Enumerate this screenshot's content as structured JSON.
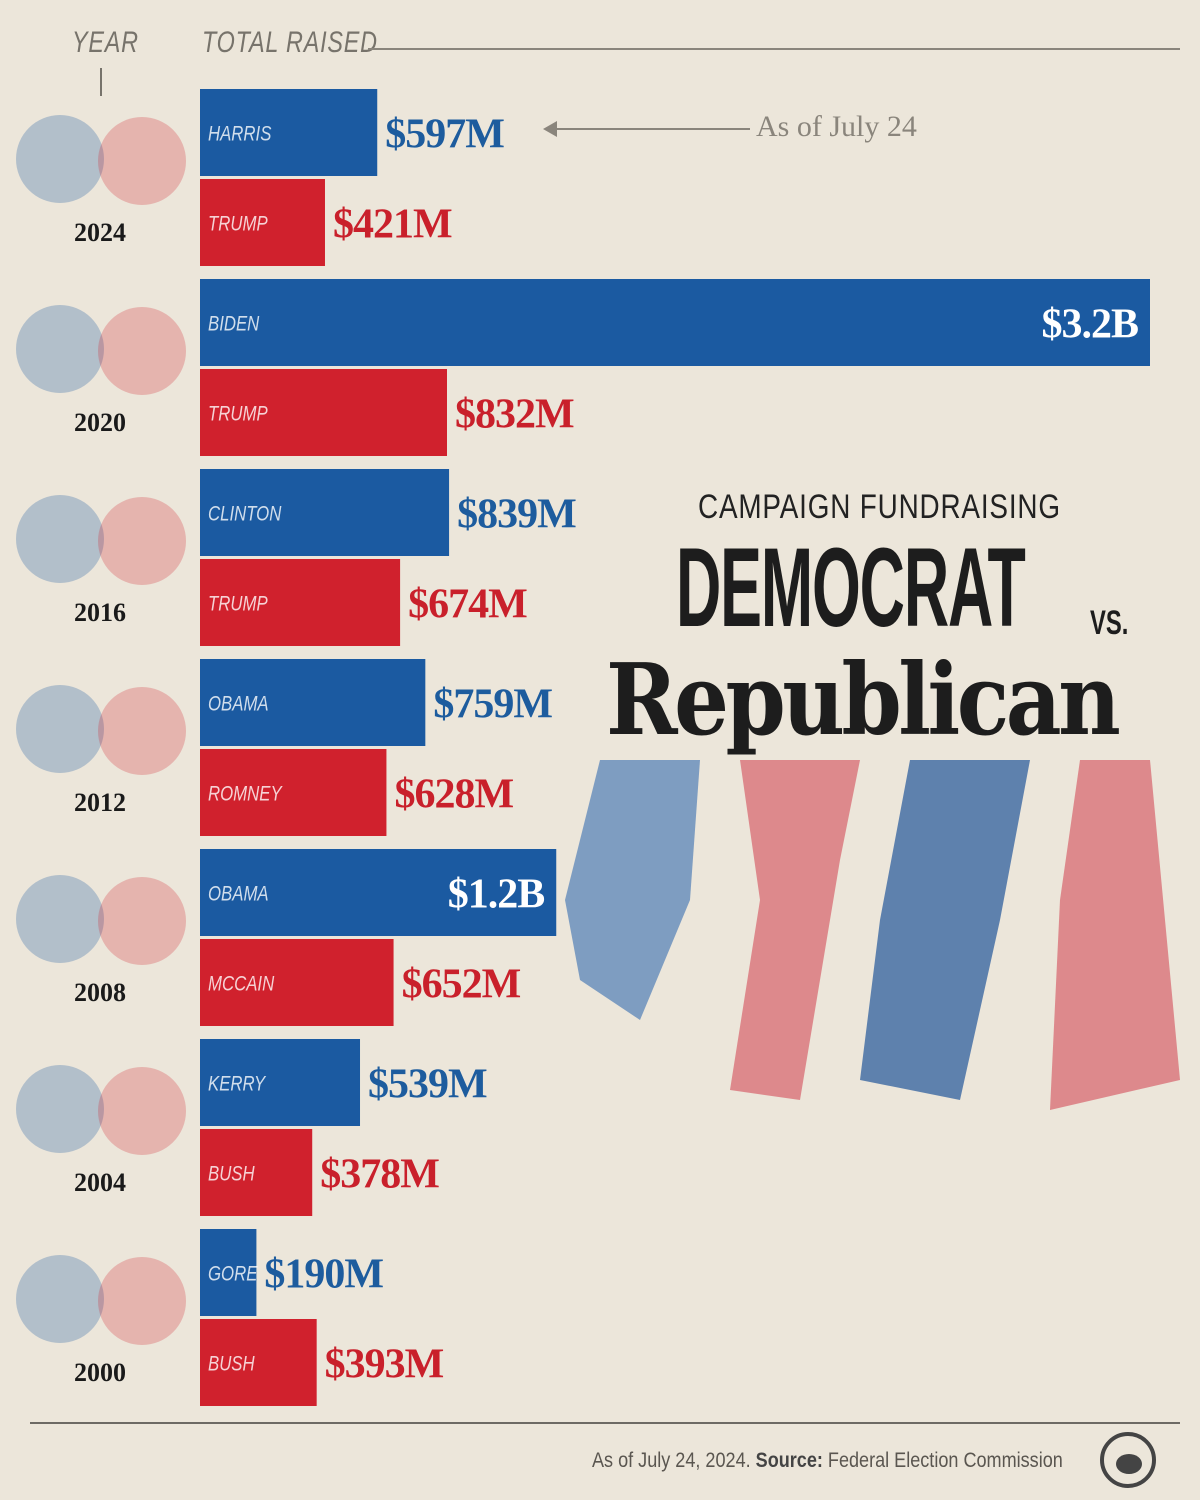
{
  "header": {
    "year_label": "YEAR",
    "total_label": "TOTAL RAISED"
  },
  "annotation": "As of July 24",
  "title": {
    "kicker": "CAMPAIGN FUNDRAISING",
    "line1": "DEMOCRAT",
    "vs": "VS.",
    "line2": "Republican"
  },
  "footer": {
    "date": "As of July 24, 2024.",
    "source_label": "Source:",
    "source": "Federal Election Commission"
  },
  "colors": {
    "democrat": "#1b5aa1",
    "republican": "#d0212d",
    "democrat_label": "#1d5c9e",
    "republican_label": "#c9202b"
  },
  "chart_data": {
    "type": "bar",
    "orientation": "horizontal",
    "xlabel": "TOTAL RAISED",
    "ylabel": "YEAR",
    "units": "USD millions",
    "xlim": [
      0,
      3200
    ],
    "groups": [
      {
        "year": "2024",
        "dem": {
          "name": "HARRIS",
          "value": 597,
          "label": "$597M"
        },
        "rep": {
          "name": "TRUMP",
          "value": 421,
          "label": "$421M"
        }
      },
      {
        "year": "2020",
        "dem": {
          "name": "BIDEN",
          "value": 3200,
          "label": "$3.2B"
        },
        "rep": {
          "name": "TRUMP",
          "value": 832,
          "label": "$832M"
        }
      },
      {
        "year": "2016",
        "dem": {
          "name": "CLINTON",
          "value": 839,
          "label": "$839M"
        },
        "rep": {
          "name": "TRUMP",
          "value": 674,
          "label": "$674M"
        }
      },
      {
        "year": "2012",
        "dem": {
          "name": "OBAMA",
          "value": 759,
          "label": "$759M"
        },
        "rep": {
          "name": "ROMNEY",
          "value": 628,
          "label": "$628M"
        }
      },
      {
        "year": "2008",
        "dem": {
          "name": "OBAMA",
          "value": 1200,
          "label": "$1.2B"
        },
        "rep": {
          "name": "MCCAIN",
          "value": 652,
          "label": "$652M"
        }
      },
      {
        "year": "2004",
        "dem": {
          "name": "KERRY",
          "value": 539,
          "label": "$539M"
        },
        "rep": {
          "name": "BUSH",
          "value": 378,
          "label": "$378M"
        }
      },
      {
        "year": "2000",
        "dem": {
          "name": "GORE",
          "value": 190,
          "label": "$190M"
        },
        "rep": {
          "name": "BUSH",
          "value": 393,
          "label": "$393M"
        }
      }
    ]
  }
}
